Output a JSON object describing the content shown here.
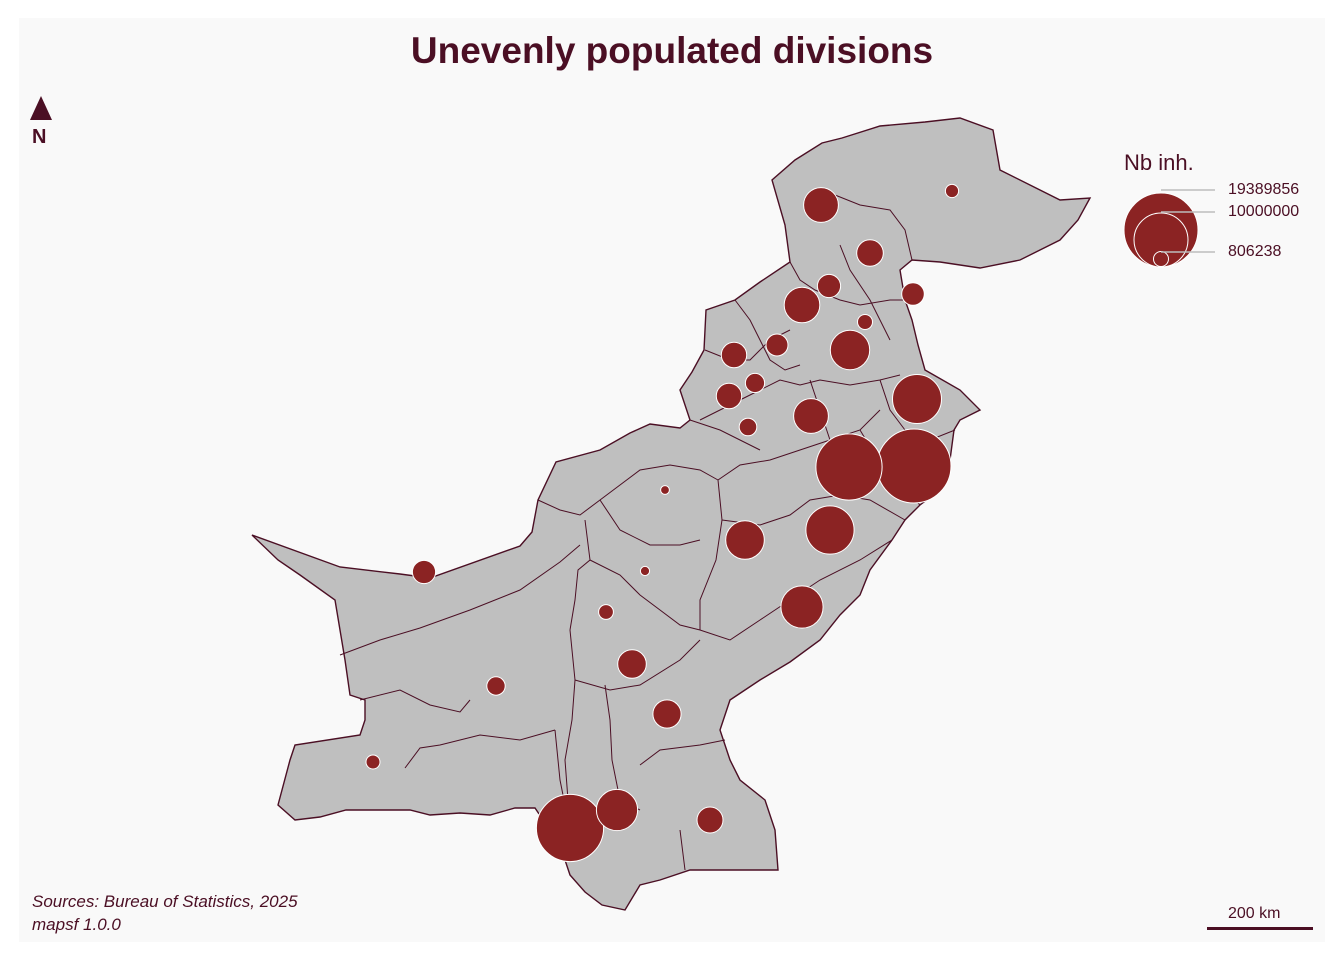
{
  "title": "Unevenly populated divisions",
  "north_arrow": {
    "icon": "north-arrow-icon",
    "label": "N"
  },
  "legend": {
    "title": "Nb inh.",
    "values": [
      "19389856",
      "10000000",
      "806238"
    ]
  },
  "source": {
    "line1": "Sources: Bureau of Statistics, 2025",
    "line2": "mapsf 1.0.0"
  },
  "scale_bar": {
    "label": "200 km"
  },
  "colors": {
    "background": "#f9f9f9",
    "land": "#bfbfbf",
    "border": "#4b0f24",
    "symbol": "#8b2323",
    "symbol_stroke": "#ffffff",
    "text": "#4b0f24"
  },
  "proportional_symbols": [
    {
      "id": "north-1",
      "population": 4300000
    },
    {
      "id": "north-2",
      "population": 620000
    },
    {
      "id": "north-3",
      "population": 2500000
    },
    {
      "id": "north-4",
      "population": 1900000
    },
    {
      "id": "north-5",
      "population": 1800000
    },
    {
      "id": "north-6",
      "population": 4500000
    },
    {
      "id": "north-7",
      "population": 800000
    },
    {
      "id": "north-8",
      "population": 5500000
    },
    {
      "id": "north-9",
      "population": 2300000
    },
    {
      "id": "north-10",
      "population": 1700000
    },
    {
      "id": "north-11",
      "population": 1300000
    },
    {
      "id": "north-12",
      "population": 2300000
    },
    {
      "id": "north-13",
      "population": 1100000
    },
    {
      "id": "east-1",
      "population": 8500000
    },
    {
      "id": "east-2",
      "population": 1200000
    },
    {
      "id": "east-3",
      "population": 4300000
    },
    {
      "id": "east-4",
      "population": 15500000
    },
    {
      "id": "east-5",
      "population": 8200000
    },
    {
      "id": "east-6",
      "population": 19389856
    },
    {
      "id": "center-1",
      "population": 280000
    },
    {
      "id": "center-2",
      "population": 5300000
    },
    {
      "id": "center-3",
      "population": 6300000
    },
    {
      "id": "center-4",
      "population": 300000
    },
    {
      "id": "center-5",
      "population": 6300000
    },
    {
      "id": "west-1",
      "population": 1900000
    },
    {
      "id": "west-2",
      "population": 780000
    },
    {
      "id": "south-1",
      "population": 2900000
    },
    {
      "id": "south-2",
      "population": 1200000
    },
    {
      "id": "south-3",
      "population": 2800000
    },
    {
      "id": "south-4",
      "population": 700000
    },
    {
      "id": "south-5",
      "population": 6000000
    },
    {
      "id": "south-6",
      "population": 16000000
    },
    {
      "id": "south-7",
      "population": 2400000
    }
  ]
}
